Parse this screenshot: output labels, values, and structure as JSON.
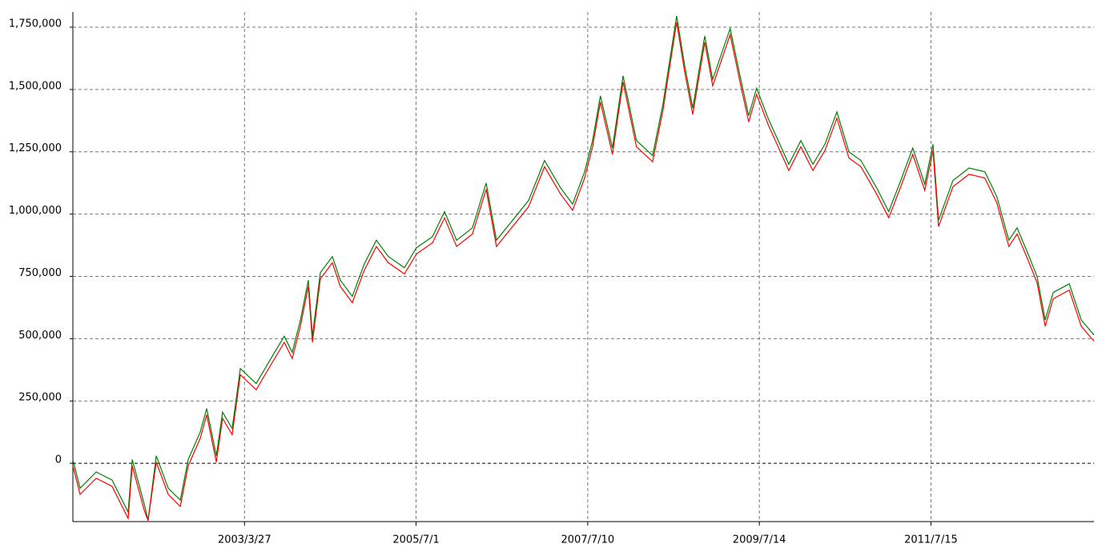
{
  "chart_data": {
    "type": "line",
    "x": [
      0,
      21,
      68,
      114,
      161,
      173,
      208,
      219,
      243,
      278,
      313,
      336,
      371,
      390,
      418,
      436,
      464,
      488,
      534,
      581,
      616,
      639,
      663,
      686,
      698,
      721,
      756,
      779,
      814,
      849,
      884,
      919,
      966,
      1001,
      1048,
      1083,
      1118,
      1164,
      1204,
      1234,
      1281,
      1328,
      1374,
      1421,
      1456,
      1491,
      1514,
      1537,
      1572,
      1603,
      1642,
      1689,
      1719,
      1759,
      1782,
      1806,
      1841,
      1864,
      1915,
      1946,
      1969,
      1992,
      2027,
      2086,
      2121,
      2156,
      2191,
      2226,
      2261,
      2296,
      2342,
      2377,
      2412,
      2447,
      2482,
      2506,
      2522,
      2564,
      2611,
      2657,
      2692,
      2727,
      2751,
      2786,
      2809,
      2833,
      2856,
      2903,
      2938,
      2975
    ],
    "series": [
      {
        "color": "#008000",
        "values": [
          15000,
          -100000,
          -35000,
          -67000,
          -196000,
          15000,
          -164000,
          -228000,
          30000,
          -100000,
          -148000,
          15000,
          125000,
          220000,
          30000,
          205000,
          140000,
          380000,
          320000,
          430000,
          510000,
          445000,
          575000,
          735000,
          510000,
          765000,
          830000,
          735000,
          670000,
          800000,
          895000,
          830000,
          785000,
          865000,
          910000,
          1010000,
          895000,
          945000,
          1125000,
          895000,
          975000,
          1055000,
          1215000,
          1105000,
          1040000,
          1170000,
          1295000,
          1475000,
          1265000,
          1555000,
          1295000,
          1235000,
          1440000,
          1795000,
          1600000,
          1425000,
          1715000,
          1540000,
          1745000,
          1540000,
          1395000,
          1505000,
          1380000,
          1200000,
          1295000,
          1200000,
          1280000,
          1410000,
          1250000,
          1215000,
          1105000,
          1010000,
          1135000,
          1265000,
          1120000,
          1280000,
          975000,
          1135000,
          1185000,
          1170000,
          1070000,
          895000,
          945000,
          830000,
          750000,
          575000,
          685000,
          720000,
          575000,
          515000
        ]
      },
      {
        "color": "#ff0000",
        "values": [
          -10000,
          -125000,
          -60000,
          -92000,
          -221000,
          -10000,
          -189000,
          -230000,
          5000,
          -125000,
          -173000,
          -10000,
          100000,
          195000,
          5000,
          180000,
          115000,
          355000,
          295000,
          405000,
          485000,
          420000,
          550000,
          710000,
          485000,
          740000,
          805000,
          710000,
          645000,
          775000,
          870000,
          805000,
          760000,
          840000,
          885000,
          985000,
          870000,
          920000,
          1100000,
          870000,
          950000,
          1030000,
          1190000,
          1080000,
          1015000,
          1145000,
          1270000,
          1450000,
          1240000,
          1530000,
          1270000,
          1210000,
          1415000,
          1770000,
          1575000,
          1400000,
          1690000,
          1515000,
          1720000,
          1515000,
          1370000,
          1480000,
          1355000,
          1175000,
          1270000,
          1175000,
          1255000,
          1385000,
          1225000,
          1190000,
          1080000,
          985000,
          1110000,
          1240000,
          1095000,
          1255000,
          950000,
          1110000,
          1160000,
          1145000,
          1045000,
          870000,
          920000,
          805000,
          725000,
          550000,
          660000,
          695000,
          550000,
          490000
        ]
      }
    ],
    "xlim": [
      0,
      2975
    ],
    "xticks": [
      {
        "value": 500,
        "label": "2003/3/27"
      },
      {
        "value": 1000,
        "label": "2005/7/1"
      },
      {
        "value": 1500,
        "label": "2007/7/10"
      },
      {
        "value": 2000,
        "label": "2009/7/14"
      },
      {
        "value": 2500,
        "label": "2011/7/15"
      }
    ],
    "ylim": [
      -234000,
      1811000
    ],
    "yticks": [
      0,
      {
        "value": 250000,
        "label": "250,000"
      },
      {
        "value": 500000,
        "label": "500,000"
      },
      {
        "value": 750000,
        "label": "750,000"
      },
      {
        "value": 1000000,
        "label": "1,000,000"
      },
      {
        "value": 1250000,
        "label": "1,250,000"
      },
      {
        "value": 1500000,
        "label": "1,500,000"
      },
      {
        "value": 1750000,
        "label": "1,750,000"
      }
    ],
    "grid": true
  }
}
